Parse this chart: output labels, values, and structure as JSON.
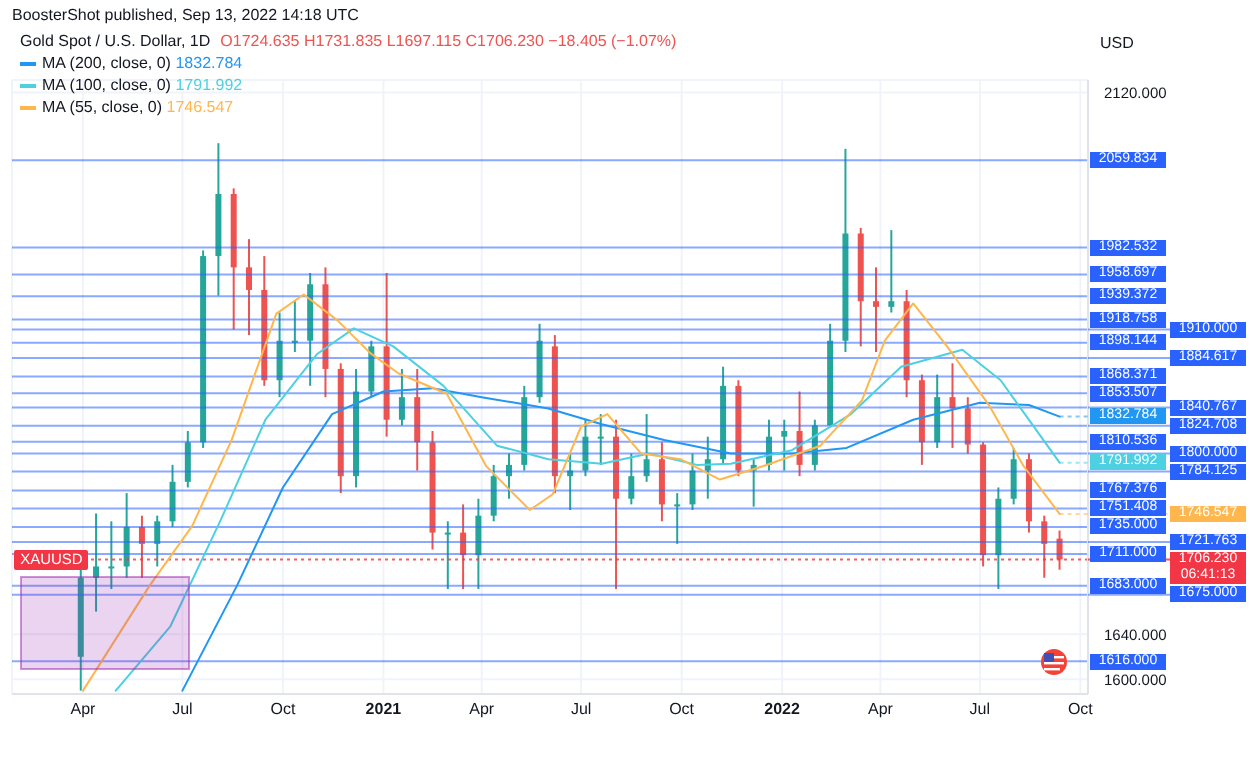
{
  "chart_data": {
    "type": "candlestick",
    "title": "Gold Spot / U.S. Dollar, 1D",
    "ylabel": "USD",
    "annotations": [
      "BoosterShot published, Sep 13, 2022 14:18 UTC",
      "O1724.635 H1731.835 L1697.115 C1706.230 −18.405 (−1.07%)",
      {
        "text": "XAUUSD",
        "x": "2020-01-29",
        "y": 1706.23
      },
      "06:41:13"
    ],
    "xlim": [
      "2020-01-27",
      "2022-10-08"
    ],
    "xticks": [
      {
        "value": "2020-04-01",
        "label": "Apr"
      },
      {
        "value": "2020-07-01",
        "label": "Jul"
      },
      {
        "value": "2020-10-01",
        "label": "Oct"
      },
      {
        "value": "2021-01-01",
        "label": "2021"
      },
      {
        "value": "2021-04-01",
        "label": "Apr"
      },
      {
        "value": "2021-07-01",
        "label": "Jul"
      },
      {
        "value": "2021-10-01",
        "label": "Oct"
      },
      {
        "value": "2022-01-01",
        "label": "2022"
      },
      {
        "value": "2022-04-01",
        "label": "Apr"
      },
      {
        "value": "2022-07-01",
        "label": "Jul"
      },
      {
        "value": "2022-10-01",
        "label": "Oct"
      }
    ],
    "ylim": [
      1587,
      2131
    ],
    "yticks": [
      {
        "value": 2120,
        "label": "2120.000"
      },
      {
        "value": 1640,
        "label": "1640.000"
      },
      {
        "value": 1600,
        "label": "1600.000"
      }
    ],
    "grid": true,
    "legend": "top left",
    "series": [
      {
        "x": [
          "2020-03-30",
          "2020-04-13",
          "2020-04-27",
          "2020-05-11",
          "2020-05-25",
          "2020-06-08",
          "2020-06-22",
          "2020-07-06",
          "2020-07-20",
          "2020-08-03",
          "2020-08-17",
          "2020-08-31",
          "2020-09-14",
          "2020-09-28",
          "2020-10-12",
          "2020-10-26",
          "2020-11-09",
          "2020-11-23",
          "2020-12-07",
          "2020-12-21",
          "2021-01-04",
          "2021-01-18",
          "2021-02-01",
          "2021-02-15",
          "2021-03-01",
          "2021-03-15",
          "2021-03-29",
          "2021-04-12",
          "2021-04-26",
          "2021-05-10",
          "2021-05-24",
          "2021-06-07",
          "2021-06-21",
          "2021-07-05",
          "2021-07-19",
          "2021-08-02",
          "2021-08-16",
          "2021-08-30",
          "2021-09-13",
          "2021-09-27",
          "2021-10-11",
          "2021-10-25",
          "2021-11-08",
          "2021-11-22",
          "2021-12-06",
          "2021-12-20",
          "2022-01-03",
          "2022-01-17",
          "2022-01-31",
          "2022-02-14",
          "2022-02-28",
          "2022-03-14",
          "2022-03-28",
          "2022-04-11",
          "2022-04-25",
          "2022-05-09",
          "2022-05-23",
          "2022-06-06",
          "2022-06-20",
          "2022-07-04",
          "2022-07-18",
          "2022-08-01",
          "2022-08-15",
          "2022-08-29",
          "2022-09-12"
        ],
        "ohlc": [
          [
            1620,
            1700,
            1590,
            1690
          ],
          [
            1690,
            1747,
            1660,
            1700
          ],
          [
            1700,
            1740,
            1680,
            1700
          ],
          [
            1700,
            1765,
            1690,
            1735
          ],
          [
            1735,
            1745,
            1690,
            1720
          ],
          [
            1720,
            1745,
            1700,
            1740
          ],
          [
            1740,
            1790,
            1735,
            1775
          ],
          [
            1775,
            1820,
            1770,
            1810
          ],
          [
            1810,
            1980,
            1805,
            1975
          ],
          [
            1975,
            2075,
            1940,
            2030
          ],
          [
            2030,
            2035,
            1910,
            1965
          ],
          [
            1965,
            1990,
            1905,
            1945
          ],
          [
            1945,
            1975,
            1860,
            1865
          ],
          [
            1865,
            1925,
            1850,
            1900
          ],
          [
            1900,
            1935,
            1890,
            1900
          ],
          [
            1900,
            1960,
            1860,
            1950
          ],
          [
            1950,
            1965,
            1850,
            1875
          ],
          [
            1875,
            1880,
            1765,
            1780
          ],
          [
            1780,
            1875,
            1770,
            1855
          ],
          [
            1855,
            1900,
            1850,
            1895
          ],
          [
            1895,
            1960,
            1815,
            1830
          ],
          [
            1830,
            1875,
            1825,
            1850
          ],
          [
            1850,
            1875,
            1785,
            1810
          ],
          [
            1810,
            1820,
            1715,
            1730
          ],
          [
            1730,
            1740,
            1680,
            1730
          ],
          [
            1730,
            1755,
            1680,
            1710
          ],
          [
            1710,
            1760,
            1680,
            1745
          ],
          [
            1745,
            1790,
            1740,
            1780
          ],
          [
            1780,
            1800,
            1760,
            1790
          ],
          [
            1790,
            1860,
            1785,
            1850
          ],
          [
            1850,
            1915,
            1845,
            1900
          ],
          [
            1895,
            1905,
            1765,
            1780
          ],
          [
            1780,
            1800,
            1750,
            1785
          ],
          [
            1785,
            1830,
            1780,
            1815
          ],
          [
            1815,
            1835,
            1790,
            1815
          ],
          [
            1815,
            1830,
            1680,
            1760
          ],
          [
            1760,
            1800,
            1755,
            1780
          ],
          [
            1780,
            1835,
            1775,
            1795
          ],
          [
            1795,
            1810,
            1740,
            1755
          ],
          [
            1755,
            1765,
            1720,
            1755
          ],
          [
            1755,
            1800,
            1750,
            1785
          ],
          [
            1785,
            1815,
            1760,
            1795
          ],
          [
            1795,
            1877,
            1790,
            1860
          ],
          [
            1860,
            1865,
            1780,
            1785
          ],
          [
            1785,
            1795,
            1753,
            1790
          ],
          [
            1790,
            1830,
            1785,
            1815
          ],
          [
            1815,
            1830,
            1785,
            1820
          ],
          [
            1820,
            1855,
            1780,
            1790
          ],
          [
            1790,
            1830,
            1785,
            1825
          ],
          [
            1825,
            1915,
            1825,
            1900
          ],
          [
            1900,
            2070,
            1890,
            1995
          ],
          [
            1995,
            2000,
            1895,
            1935
          ],
          [
            1935,
            1965,
            1890,
            1930
          ],
          [
            1930,
            1998,
            1925,
            1935
          ],
          [
            1935,
            1945,
            1850,
            1865
          ],
          [
            1865,
            1870,
            1790,
            1810
          ],
          [
            1810,
            1870,
            1805,
            1850
          ],
          [
            1850,
            1880,
            1805,
            1840
          ],
          [
            1840,
            1850,
            1800,
            1808
          ],
          [
            1808,
            1810,
            1700,
            1710
          ],
          [
            1710,
            1770,
            1680,
            1760
          ],
          [
            1760,
            1805,
            1755,
            1795
          ],
          [
            1795,
            1800,
            1730,
            1740
          ],
          [
            1740,
            1745,
            1690,
            1720
          ],
          [
            1724.635,
            1731.835,
            1697.115,
            1706.23
          ]
        ],
        "colors": [
          "#26a69a",
          "#26a69a",
          "#26a69a",
          "#26a69a",
          "#ef5350",
          "#26a69a",
          "#26a69a",
          "#26a69a",
          "#26a69a",
          "#26a69a",
          "#ef5350",
          "#ef5350",
          "#ef5350",
          "#26a69a",
          "#26a69a",
          "#26a69a",
          "#ef5350",
          "#ef5350",
          "#26a69a",
          "#26a69a",
          "#ef5350",
          "#26a69a",
          "#ef5350",
          "#ef5350",
          "#26a69a",
          "#ef5350",
          "#26a69a",
          "#26a69a",
          "#26a69a",
          "#26a69a",
          "#26a69a",
          "#ef5350",
          "#26a69a",
          "#26a69a",
          "#26a69a",
          "#ef5350",
          "#26a69a",
          "#26a69a",
          "#ef5350",
          "#26a69a",
          "#26a69a",
          "#26a69a",
          "#26a69a",
          "#ef5350",
          "#26a69a",
          "#26a69a",
          "#26a69a",
          "#ef5350",
          "#26a69a",
          "#26a69a",
          "#26a69a",
          "#ef5350",
          "#ef5350",
          "#26a69a",
          "#ef5350",
          "#ef5350",
          "#26a69a",
          "#ef5350",
          "#ef5350",
          "#ef5350",
          "#26a69a",
          "#26a69a",
          "#ef5350",
          "#ef5350",
          "#ef5350"
        ]
      },
      {
        "type": "line",
        "name": "MA (200, close, 0)",
        "color": "#2196f3",
        "x": [
          "2020-07-01",
          "2020-08-20",
          "2020-10-01",
          "2020-11-15",
          "2021-01-01",
          "2021-02-15",
          "2021-04-01",
          "2021-06-01",
          "2021-07-20",
          "2021-09-15",
          "2021-11-15",
          "2022-01-10",
          "2022-03-01",
          "2022-05-01",
          "2022-07-01",
          "2022-08-15",
          "2022-09-12"
        ],
        "values": [
          1590,
          1683,
          1770,
          1835,
          1855,
          1858,
          1850,
          1840,
          1826,
          1812,
          1800,
          1800,
          1805,
          1830,
          1845,
          1843,
          1832.784
        ],
        "value_labels": [
          null,
          null,
          null,
          null,
          null,
          null,
          null,
          null,
          null,
          null,
          null,
          null,
          null,
          null,
          null,
          null,
          "1832.784"
        ]
      },
      {
        "type": "line",
        "name": "MA (100, close, 0)",
        "color": "#4dd0e1",
        "x": [
          "2020-05-01",
          "2020-06-20",
          "2020-08-05",
          "2020-09-15",
          "2020-11-01",
          "2020-12-05",
          "2021-01-10",
          "2021-02-25",
          "2021-04-15",
          "2021-06-01",
          "2021-07-20",
          "2021-09-01",
          "2021-10-15",
          "2021-11-15",
          "2022-01-10",
          "2022-03-05",
          "2022-04-20",
          "2022-06-15",
          "2022-07-20",
          "2022-09-12"
        ],
        "values": [
          1590,
          1647,
          1741,
          1830,
          1888,
          1911,
          1895,
          1860,
          1807,
          1795,
          1791,
          1800,
          1790,
          1791,
          1803,
          1835,
          1877,
          1892,
          1865,
          1791.992
        ],
        "value_labels": [
          null,
          null,
          null,
          null,
          null,
          null,
          null,
          null,
          null,
          null,
          null,
          null,
          null,
          null,
          null,
          null,
          null,
          null,
          null,
          "1791.992"
        ]
      },
      {
        "type": "line",
        "name": "MA (55, close, 0)",
        "color": "#ffb74d",
        "x": [
          "2020-04-01",
          "2020-06-01",
          "2020-07-10",
          "2020-08-15",
          "2020-09-25",
          "2020-10-20",
          "2020-11-20",
          "2020-12-20",
          "2021-01-15",
          "2021-02-28",
          "2021-04-05",
          "2021-05-15",
          "2021-06-05",
          "2021-07-01",
          "2021-07-25",
          "2021-08-25",
          "2021-09-30",
          "2021-11-05",
          "2021-12-15",
          "2022-02-05",
          "2022-03-15",
          "2022-04-05",
          "2022-05-01",
          "2022-06-01",
          "2022-07-10",
          "2022-08-10",
          "2022-09-12"
        ],
        "values": [
          1590,
          1683,
          1736,
          1812,
          1924,
          1941,
          1918,
          1889,
          1871,
          1853,
          1789,
          1750,
          1764,
          1824,
          1835,
          1800,
          1795,
          1777,
          1789,
          1807,
          1847,
          1900,
          1933,
          1895,
          1842,
          1789,
          1746.547
        ],
        "value_labels": [
          null,
          null,
          null,
          null,
          null,
          null,
          null,
          null,
          null,
          null,
          null,
          null,
          null,
          null,
          null,
          null,
          null,
          null,
          null,
          null,
          null,
          null,
          null,
          null,
          null,
          null,
          "1746.547"
        ]
      }
    ],
    "ref_lines": [
      {
        "axis": "y",
        "value": 2059.834,
        "label": "2059.834",
        "color": "#2962ff"
      },
      {
        "axis": "y",
        "value": 1982.532,
        "label": "1982.532",
        "color": "#2962ff"
      },
      {
        "axis": "y",
        "value": 1958.697,
        "label": "1958.697",
        "color": "#2962ff"
      },
      {
        "axis": "y",
        "value": 1939.372,
        "label": "1939.372",
        "color": "#2962ff"
      },
      {
        "axis": "y",
        "value": 1918.758,
        "label": "1918.758",
        "color": "#2962ff"
      },
      {
        "axis": "y",
        "value": 1910,
        "label": "1910.000",
        "color": "#2962ff"
      },
      {
        "axis": "y",
        "value": 1898.144,
        "label": "1898.144",
        "color": "#2962ff"
      },
      {
        "axis": "y",
        "value": 1884.617,
        "label": "1884.617",
        "color": "#2962ff"
      },
      {
        "axis": "y",
        "value": 1868.371,
        "label": "1868.371",
        "color": "#2962ff"
      },
      {
        "axis": "y",
        "value": 1853.507,
        "label": "1853.507",
        "color": "#2962ff"
      },
      {
        "axis": "y",
        "value": 1840.767,
        "label": "1840.767",
        "color": "#2962ff"
      },
      {
        "axis": "y",
        "value": 1824.708,
        "label": "1824.708",
        "color": "#2962ff"
      },
      {
        "axis": "y",
        "value": 1810.536,
        "label": "1810.536",
        "color": "#2962ff"
      },
      {
        "axis": "y",
        "value": 1800,
        "label": "1800.000",
        "color": "#2962ff"
      },
      {
        "axis": "y",
        "value": 1784.125,
        "label": "1784.125",
        "color": "#2962ff"
      },
      {
        "axis": "y",
        "value": 1767.376,
        "label": "1767.376",
        "color": "#2962ff"
      },
      {
        "axis": "y",
        "value": 1751.408,
        "label": "1751.408",
        "color": "#2962ff"
      },
      {
        "axis": "y",
        "value": 1735,
        "label": "1735.000",
        "color": "#2962ff"
      },
      {
        "axis": "y",
        "value": 1721.763,
        "label": "1721.763",
        "color": "#2962ff"
      },
      {
        "axis": "y",
        "value": 1711,
        "label": "1711.000",
        "color": "#2962ff"
      },
      {
        "axis": "y",
        "value": 1706.23,
        "label": "1706.230",
        "color": "#f23645",
        "line_style": "dotted"
      },
      {
        "axis": "y",
        "value": 1683,
        "label": "1683.000",
        "color": "#2962ff"
      },
      {
        "axis": "y",
        "value": 1675,
        "label": "1675.000",
        "color": "#2962ff"
      },
      {
        "axis": "y",
        "value": 1616,
        "label": "1616.000",
        "color": "#2962ff"
      }
    ]
  }
}
